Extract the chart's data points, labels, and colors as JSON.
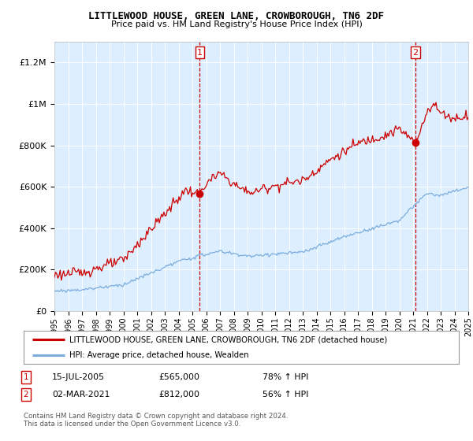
{
  "title": "LITTLEWOOD HOUSE, GREEN LANE, CROWBOROUGH, TN6 2DF",
  "subtitle": "Price paid vs. HM Land Registry's House Price Index (HPI)",
  "legend_line1": "LITTLEWOOD HOUSE, GREEN LANE, CROWBOROUGH, TN6 2DF (detached house)",
  "legend_line2": "HPI: Average price, detached house, Wealden",
  "annotation1_date": "15-JUL-2005",
  "annotation1_price": "£565,000",
  "annotation1_hpi": "78% ↑ HPI",
  "annotation2_date": "02-MAR-2021",
  "annotation2_price": "£812,000",
  "annotation2_hpi": "56% ↑ HPI",
  "footer": "Contains HM Land Registry data © Crown copyright and database right 2024.\nThis data is licensed under the Open Government Licence v3.0.",
  "house_color": "#cc0000",
  "hpi_color": "#7aaddd",
  "annotation_color": "#cc0000",
  "background_color": "#ffffff",
  "plot_bg_color": "#ddeeff",
  "grid_color": "#ffffff",
  "ylim": [
    0,
    1300000
  ],
  "yticks": [
    0,
    200000,
    400000,
    600000,
    800000,
    1000000,
    1200000
  ],
  "ytick_labels": [
    "£0",
    "£200K",
    "£400K",
    "£600K",
    "£800K",
    "£1M",
    "£1.2M"
  ],
  "sale1_x": 2005.54,
  "sale1_y": 565000,
  "sale2_x": 2021.17,
  "sale2_y": 812000,
  "xlim_start": 1995,
  "xlim_end": 2025
}
